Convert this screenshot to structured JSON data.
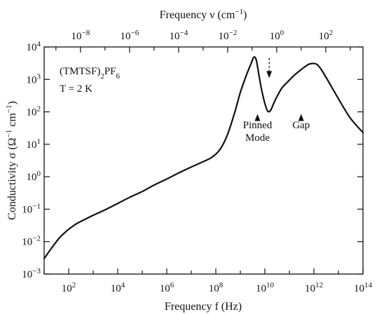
{
  "chart_data": {
    "type": "line",
    "title": "",
    "xlabel": "Frequency f (Hz)",
    "ylabel_parts": {
      "pre": "Conductivity σ (Ω",
      "sup1": "−1",
      "mid": " cm",
      "sup2": "−1",
      "post": ")"
    },
    "top_xlabel_parts": {
      "pre": "Frequency ν (cm",
      "sup": "−1",
      "post": ")"
    },
    "x_scale": "log",
    "y_scale": "log",
    "xlim": [
      10,
      100000000000000
    ],
    "ylim": [
      0.001,
      10000
    ],
    "top_xlim": [
      3.3e-10,
      3300
    ],
    "x_ticks": [
      {
        "value": 100,
        "base": "10",
        "exp": "2"
      },
      {
        "value": 10000,
        "base": "10",
        "exp": "4"
      },
      {
        "value": 1000000,
        "base": "10",
        "exp": "6"
      },
      {
        "value": 100000000,
        "base": "10",
        "exp": "8"
      },
      {
        "value": 10000000000,
        "base": "10",
        "exp": "10"
      },
      {
        "value": 1000000000000,
        "base": "10",
        "exp": "12"
      },
      {
        "value": 100000000000000,
        "base": "10",
        "exp": "14"
      }
    ],
    "y_ticks": [
      {
        "value": 0.001,
        "base": "10",
        "exp": "−3"
      },
      {
        "value": 0.01,
        "base": "10",
        "exp": "−2"
      },
      {
        "value": 0.1,
        "base": "10",
        "exp": "−1"
      },
      {
        "value": 1,
        "base": "10",
        "exp": "0"
      },
      {
        "value": 10,
        "base": "10",
        "exp": "1"
      },
      {
        "value": 100,
        "base": "10",
        "exp": "2"
      },
      {
        "value": 1000,
        "base": "10",
        "exp": "3"
      },
      {
        "value": 10000,
        "base": "10",
        "exp": "4"
      }
    ],
    "top_ticks": [
      {
        "value": 1e-08,
        "base": "10",
        "exp": "−8"
      },
      {
        "value": 1e-06,
        "base": "10",
        "exp": "−6"
      },
      {
        "value": 0.0001,
        "base": "10",
        "exp": "−4"
      },
      {
        "value": 0.01,
        "base": "10",
        "exp": "−2"
      },
      {
        "value": 1,
        "base": "10",
        "exp": "0"
      },
      {
        "value": 100,
        "base": "10",
        "exp": "2"
      }
    ],
    "series": [
      {
        "x": [
          10,
          20,
          40,
          70,
          100,
          200,
          500,
          1000,
          3000,
          10000,
          30000,
          100000,
          300000,
          1000000,
          3000000,
          10000000,
          30000000,
          70000000,
          150000000,
          300000000,
          600000000,
          1000000000,
          1800000000,
          2700000000,
          3500000000,
          4300000000,
          5000000000,
          6000000000,
          7500000000,
          10000000000,
          13000000000,
          17000000000,
          22000000000,
          30000000000,
          50000000000,
          80000000000,
          150000000000,
          300000000000,
          600000000000,
          1000000000000,
          1400000000000,
          2000000000000,
          3500000000000,
          7000000000000,
          15000000000000,
          30000000000000,
          60000000000000,
          100000000000000
        ],
        "y": [
          0.003,
          0.0063,
          0.0125,
          0.019,
          0.024,
          0.035,
          0.05,
          0.065,
          0.095,
          0.15,
          0.23,
          0.35,
          0.55,
          0.85,
          1.3,
          2.0,
          2.9,
          4.0,
          7.0,
          20,
          100,
          400,
          1400,
          3000,
          4800,
          4300,
          2500,
          1100,
          450,
          180,
          105,
          110,
          170,
          280,
          550,
          800,
          1300,
          2000,
          2900,
          3100,
          2800,
          2000,
          1000,
          400,
          150,
          65,
          35,
          23
        ]
      }
    ],
    "annotations": [
      {
        "text": "(TMTSF)",
        "sub1": "2",
        "mid": "PF",
        "sub2": "6"
      },
      {
        "text": "T = 2 K"
      },
      {
        "text": "Pinned",
        "line2": "Mode",
        "x": 5000000000,
        "y_tip": 100,
        "y_base": 40,
        "style": "solid-arrow-up"
      },
      {
        "text": "Gap",
        "x": 300000000000,
        "y_tip": 100,
        "y_base": 40,
        "style": "solid-arrow-up"
      },
      {
        "text": "",
        "x": 15000000000,
        "y_from": 4500,
        "y_to": 1100,
        "style": "dashed-arrow-down"
      }
    ],
    "grid": false
  }
}
